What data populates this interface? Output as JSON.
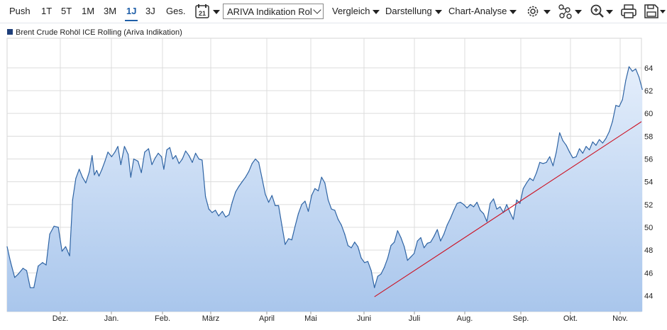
{
  "toolbar": {
    "ranges": [
      "Push",
      "1T",
      "5T",
      "1M",
      "3M",
      "1J",
      "3J",
      "Ges."
    ],
    "active_range": "1J",
    "calendar_day": "21",
    "instrument_select": "ARIVA Indikation Rol",
    "vergleich": "Vergleich",
    "darstellung": "Darstellung",
    "chart_analyse": "Chart-Analyse",
    "icons": [
      "settings-icon",
      "indicators-icon",
      "zoom-icon",
      "print-icon",
      "save-icon"
    ]
  },
  "colors": {
    "accent": "#1f5fa8",
    "line": "#2f64a4",
    "area_top": "#e4eefb",
    "area_bottom": "#a9c6ec",
    "trendline": "#cc1122",
    "grid": "#dcdcdc"
  },
  "chart_data": {
    "type": "area",
    "legend": [
      "Brent Crude Rohöl ICE Rolling (Ariva Indikation)"
    ],
    "x_labels": [
      "Dez.",
      "Jan.",
      "Feb.",
      "März",
      "April",
      "Mai",
      "Juni",
      "Juli",
      "Aug.",
      "Sep.",
      "Okt.",
      "Nov."
    ],
    "y_ticks": [
      44,
      46,
      48,
      50,
      52,
      54,
      56,
      58,
      60,
      62,
      64
    ],
    "ylim": [
      42.6,
      66.6
    ],
    "grid": true,
    "y_axis_side": "right",
    "series": [
      {
        "values": [
          [
            0.0,
            48.3
          ],
          [
            1.0,
            47.0
          ],
          [
            2.3,
            45.6
          ],
          [
            3.4,
            45.9
          ],
          [
            4.8,
            46.4
          ],
          [
            5.9,
            46.2
          ],
          [
            7.0,
            44.7
          ],
          [
            8.1,
            44.7
          ],
          [
            9.4,
            46.6
          ],
          [
            10.7,
            46.9
          ],
          [
            11.8,
            46.7
          ],
          [
            12.9,
            49.4
          ],
          [
            14.2,
            50.1
          ],
          [
            15.5,
            50.0
          ],
          [
            16.6,
            47.9
          ],
          [
            17.7,
            48.3
          ],
          [
            18.9,
            47.5
          ],
          [
            19.8,
            52.4
          ],
          [
            20.8,
            54.3
          ],
          [
            21.8,
            55.1
          ],
          [
            22.8,
            54.4
          ],
          [
            23.8,
            53.9
          ],
          [
            24.9,
            54.9
          ],
          [
            25.7,
            56.3
          ],
          [
            26.4,
            54.6
          ],
          [
            27.1,
            55.0
          ],
          [
            27.8,
            54.5
          ],
          [
            28.7,
            55.1
          ],
          [
            29.6,
            55.8
          ],
          [
            30.5,
            56.6
          ],
          [
            31.6,
            56.2
          ],
          [
            32.6,
            56.6
          ],
          [
            33.5,
            57.1
          ],
          [
            34.4,
            55.5
          ],
          [
            35.5,
            57.1
          ],
          [
            36.6,
            56.4
          ],
          [
            37.4,
            54.4
          ],
          [
            38.3,
            56.0
          ],
          [
            39.6,
            55.8
          ],
          [
            40.6,
            54.8
          ],
          [
            41.6,
            56.6
          ],
          [
            42.8,
            56.9
          ],
          [
            43.8,
            55.5
          ],
          [
            44.8,
            56.1
          ],
          [
            45.7,
            56.5
          ],
          [
            46.7,
            56.2
          ],
          [
            47.4,
            55.1
          ],
          [
            48.3,
            56.8
          ],
          [
            49.2,
            57.0
          ],
          [
            50.1,
            56.0
          ],
          [
            51.0,
            56.3
          ],
          [
            52.0,
            55.6
          ],
          [
            53.0,
            56.0
          ],
          [
            54.0,
            56.7
          ],
          [
            55.0,
            56.3
          ],
          [
            56.0,
            55.7
          ],
          [
            57.0,
            56.5
          ],
          [
            58.0,
            56.0
          ],
          [
            59.0,
            55.9
          ],
          [
            60.0,
            52.7
          ],
          [
            61.0,
            51.6
          ],
          [
            62.0,
            51.3
          ],
          [
            63.0,
            51.5
          ],
          [
            64.0,
            51.0
          ],
          [
            65.1,
            51.4
          ],
          [
            66.1,
            50.9
          ],
          [
            67.1,
            51.1
          ],
          [
            68.1,
            52.2
          ],
          [
            69.1,
            53.1
          ],
          [
            70.1,
            53.6
          ],
          [
            71.1,
            54.0
          ],
          [
            72.1,
            54.4
          ],
          [
            73.1,
            54.9
          ],
          [
            74.1,
            55.6
          ],
          [
            75.1,
            56.0
          ],
          [
            76.1,
            55.7
          ],
          [
            77.1,
            54.3
          ],
          [
            78.1,
            52.9
          ],
          [
            79.1,
            52.2
          ],
          [
            80.1,
            52.8
          ],
          [
            81.1,
            51.9
          ],
          [
            82.1,
            51.9
          ],
          [
            83.1,
            50.2
          ],
          [
            84.1,
            48.5
          ],
          [
            85.1,
            49.0
          ],
          [
            86.1,
            48.9
          ],
          [
            87.1,
            50.1
          ],
          [
            88.1,
            51.2
          ],
          [
            89.1,
            52.0
          ],
          [
            90.1,
            52.3
          ],
          [
            91.1,
            51.4
          ],
          [
            92.1,
            52.8
          ],
          [
            93.1,
            53.4
          ],
          [
            94.1,
            53.2
          ],
          [
            95.1,
            54.4
          ],
          [
            96.1,
            53.9
          ],
          [
            97.1,
            52.4
          ],
          [
            98.1,
            51.6
          ],
          [
            99.1,
            51.5
          ],
          [
            100.1,
            50.7
          ],
          [
            101.1,
            50.2
          ],
          [
            102.1,
            49.4
          ],
          [
            103.1,
            48.4
          ],
          [
            104.1,
            48.2
          ],
          [
            105.1,
            48.7
          ],
          [
            106.1,
            48.3
          ],
          [
            107.1,
            47.3
          ],
          [
            108.1,
            46.9
          ],
          [
            109.1,
            47.0
          ],
          [
            110.1,
            46.2
          ],
          [
            111.1,
            44.7
          ],
          [
            112.1,
            45.7
          ],
          [
            113.1,
            45.9
          ],
          [
            114.1,
            46.5
          ],
          [
            115.1,
            47.3
          ],
          [
            116.1,
            48.4
          ],
          [
            117.1,
            48.7
          ],
          [
            118.1,
            49.7
          ],
          [
            119.1,
            49.1
          ],
          [
            120.1,
            48.3
          ],
          [
            121.1,
            47.1
          ],
          [
            122.1,
            47.4
          ],
          [
            123.1,
            47.7
          ],
          [
            124.1,
            48.8
          ],
          [
            125.1,
            49.1
          ],
          [
            126.1,
            48.2
          ],
          [
            127.1,
            48.6
          ],
          [
            128.1,
            48.7
          ],
          [
            129.1,
            49.2
          ],
          [
            130.1,
            49.8
          ],
          [
            131.1,
            48.8
          ],
          [
            132.1,
            49.4
          ],
          [
            133.1,
            50.2
          ],
          [
            134.1,
            50.8
          ],
          [
            135.1,
            51.5
          ],
          [
            136.1,
            52.1
          ],
          [
            137.1,
            52.2
          ],
          [
            138.1,
            52.0
          ],
          [
            139.1,
            51.7
          ],
          [
            140.1,
            52.0
          ],
          [
            141.1,
            51.8
          ],
          [
            142.1,
            52.2
          ],
          [
            143.1,
            51.5
          ],
          [
            144.1,
            51.2
          ],
          [
            145.1,
            50.5
          ],
          [
            146.1,
            52.1
          ],
          [
            147.1,
            52.5
          ],
          [
            148.1,
            51.6
          ],
          [
            149.1,
            51.8
          ],
          [
            150.1,
            51.3
          ],
          [
            151.1,
            52.0
          ],
          [
            152.1,
            51.3
          ],
          [
            153.1,
            50.7
          ],
          [
            154.1,
            52.4
          ],
          [
            155.1,
            52.1
          ],
          [
            156.1,
            53.4
          ],
          [
            157.1,
            53.9
          ],
          [
            158.1,
            54.3
          ],
          [
            159.1,
            54.1
          ],
          [
            160.1,
            54.8
          ],
          [
            161.1,
            55.7
          ],
          [
            162.1,
            55.6
          ],
          [
            163.1,
            55.7
          ],
          [
            164.1,
            56.2
          ],
          [
            165.1,
            55.4
          ],
          [
            166.1,
            56.6
          ],
          [
            167.1,
            58.3
          ],
          [
            168.1,
            57.6
          ],
          [
            169.1,
            57.2
          ],
          [
            170.1,
            56.6
          ],
          [
            171.1,
            56.1
          ],
          [
            172.1,
            56.2
          ],
          [
            173.1,
            56.9
          ],
          [
            174.1,
            56.5
          ],
          [
            175.1,
            57.1
          ],
          [
            176.1,
            56.8
          ],
          [
            177.1,
            57.5
          ],
          [
            178.1,
            57.2
          ],
          [
            179.1,
            57.7
          ],
          [
            180.1,
            57.4
          ],
          [
            181.1,
            57.8
          ],
          [
            182.1,
            58.4
          ],
          [
            183.1,
            59.3
          ],
          [
            184.1,
            60.7
          ],
          [
            185.1,
            60.6
          ],
          [
            186.1,
            61.2
          ],
          [
            187.1,
            62.9
          ],
          [
            188.1,
            64.1
          ],
          [
            189.1,
            63.7
          ],
          [
            190.1,
            63.9
          ],
          [
            191.1,
            63.2
          ],
          [
            192.1,
            62.1
          ]
        ]
      }
    ],
    "trendline": {
      "points": [
        [
          111.1,
          43.9
        ],
        [
          198.8,
          60.6
        ]
      ]
    }
  }
}
